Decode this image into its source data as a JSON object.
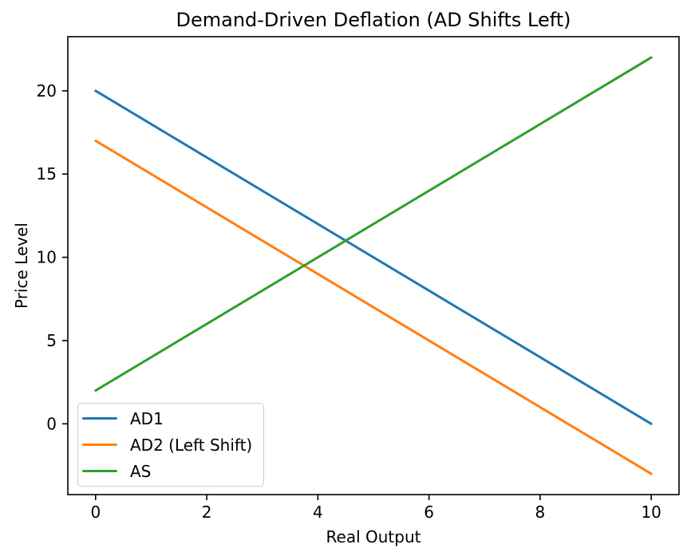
{
  "chart_data": {
    "type": "line",
    "title": "Demand-Driven Deflation (AD Shifts Left)",
    "xlabel": "Real Output",
    "ylabel": "Price Level",
    "xlim": [
      -0.5,
      10.5
    ],
    "ylim": [
      -4.25,
      23.25
    ],
    "xticks": [
      0,
      2,
      4,
      6,
      8,
      10
    ],
    "yticks": [
      0,
      5,
      10,
      15,
      20
    ],
    "grid": false,
    "legend_position": "lower left",
    "series": [
      {
        "name": "AD1",
        "color": "#1f77b4",
        "x": [
          0,
          10
        ],
        "y": [
          20,
          0
        ]
      },
      {
        "name": "AD2 (Left Shift)",
        "color": "#ff7f0e",
        "x": [
          0,
          10
        ],
        "y": [
          17,
          -3
        ]
      },
      {
        "name": "AS",
        "color": "#2ca02c",
        "x": [
          0,
          10
        ],
        "y": [
          2,
          22
        ]
      }
    ],
    "colors": {
      "axis": "#000000",
      "text": "#000000",
      "legend_border": "#cccccc",
      "background": "#ffffff"
    }
  }
}
